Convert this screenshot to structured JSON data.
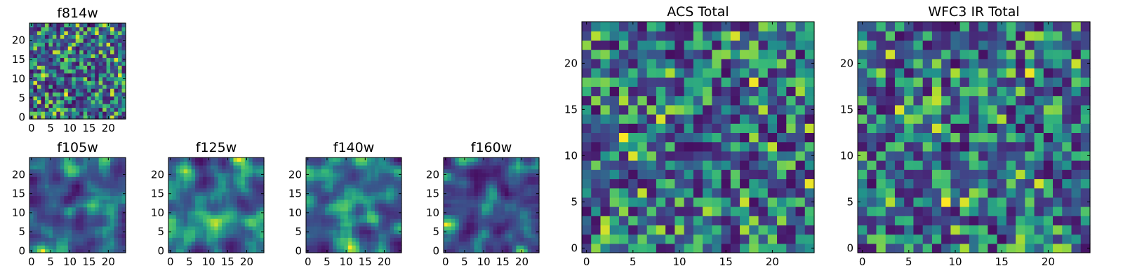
{
  "chart_data": [
    {
      "type": "heatmap",
      "id": "f814w",
      "title": "f814w",
      "size": 25,
      "xticks": [
        0,
        5,
        10,
        15,
        20
      ],
      "yticks": [
        0,
        5,
        10,
        15,
        20
      ],
      "colormap": "viridis",
      "seed": 814,
      "smooth": 0
    },
    {
      "type": "heatmap",
      "id": "f105w",
      "title": "f105w",
      "size": 25,
      "xticks": [
        0,
        5,
        10,
        15,
        20
      ],
      "yticks": [
        0,
        5,
        10,
        15,
        20
      ],
      "colormap": "viridis",
      "seed": 105,
      "smooth": 2
    },
    {
      "type": "heatmap",
      "id": "f125w",
      "title": "f125w",
      "size": 25,
      "xticks": [
        0,
        5,
        10,
        15,
        20
      ],
      "yticks": [
        0,
        5,
        10,
        15,
        20
      ],
      "colormap": "viridis",
      "seed": 125,
      "smooth": 2
    },
    {
      "type": "heatmap",
      "id": "f140w",
      "title": "f140w",
      "size": 25,
      "xticks": [
        0,
        5,
        10,
        15,
        20
      ],
      "yticks": [
        0,
        5,
        10,
        15,
        20
      ],
      "colormap": "viridis",
      "seed": 140,
      "smooth": 2
    },
    {
      "type": "heatmap",
      "id": "f160w",
      "title": "f160w",
      "size": 25,
      "xticks": [
        0,
        5,
        10,
        15,
        20
      ],
      "yticks": [
        0,
        5,
        10,
        15,
        20
      ],
      "colormap": "viridis",
      "seed": 160,
      "smooth": 2
    },
    {
      "type": "heatmap",
      "id": "acs-total",
      "title": "ACS Total",
      "size": 25,
      "xticks": [
        0,
        5,
        10,
        15,
        20
      ],
      "yticks": [
        0,
        5,
        10,
        15,
        20
      ],
      "colormap": "viridis",
      "seed": 7,
      "smooth": 0
    },
    {
      "type": "heatmap",
      "id": "wfc3-ir-total",
      "title": "WFC3 IR Total",
      "size": 25,
      "xticks": [
        0,
        5,
        10,
        15,
        20
      ],
      "yticks": [
        0,
        5,
        10,
        15,
        20
      ],
      "colormap": "viridis",
      "seed": 31,
      "smooth": 0
    }
  ]
}
